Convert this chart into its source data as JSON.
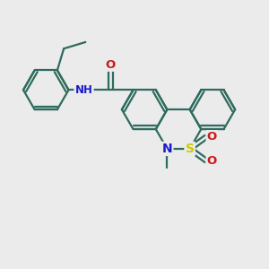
{
  "bg_color": "#ebebeb",
  "bond_color": "#2d6b5e",
  "bond_width": 1.6,
  "N_color": "#1a1acc",
  "S_color": "#cccc00",
  "O_color": "#cc1a1a",
  "font_size_atom": 8.5,
  "fig_size": [
    3.0,
    3.0
  ],
  "dpi": 100,
  "xlim": [
    0,
    10
  ],
  "ylim": [
    0,
    10
  ]
}
